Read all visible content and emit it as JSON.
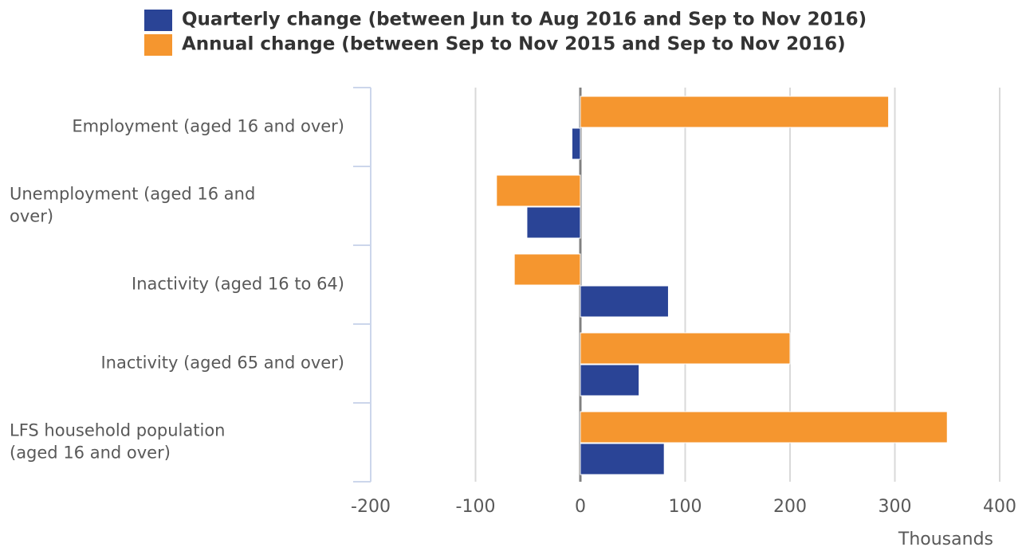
{
  "chart_data": {
    "type": "barh",
    "categories": [
      "Employment (aged 16 and over)",
      "Unemployment (aged 16 and over)",
      "Inactivity (aged 16 to 64)",
      "Inactivity (aged 65 and over)",
      "LFS household population (aged 16 and over)"
    ],
    "series": [
      {
        "name": "Quarterly change (between Jun to Aug 2016 and Sep to Nov 2016)",
        "color": "#2a4496",
        "values": [
          -8,
          -51,
          84,
          56,
          80
        ]
      },
      {
        "name": "Annual change (between Sep to Nov 2015 and Sep to Nov 2016)",
        "color": "#f5962f",
        "values": [
          294,
          -80,
          -63,
          200,
          350
        ]
      }
    ],
    "xlabel": "Thousands",
    "xlim": [
      -200,
      400
    ],
    "xticks": [
      -200,
      -100,
      0,
      100,
      200,
      300,
      400
    ],
    "grid": true
  }
}
